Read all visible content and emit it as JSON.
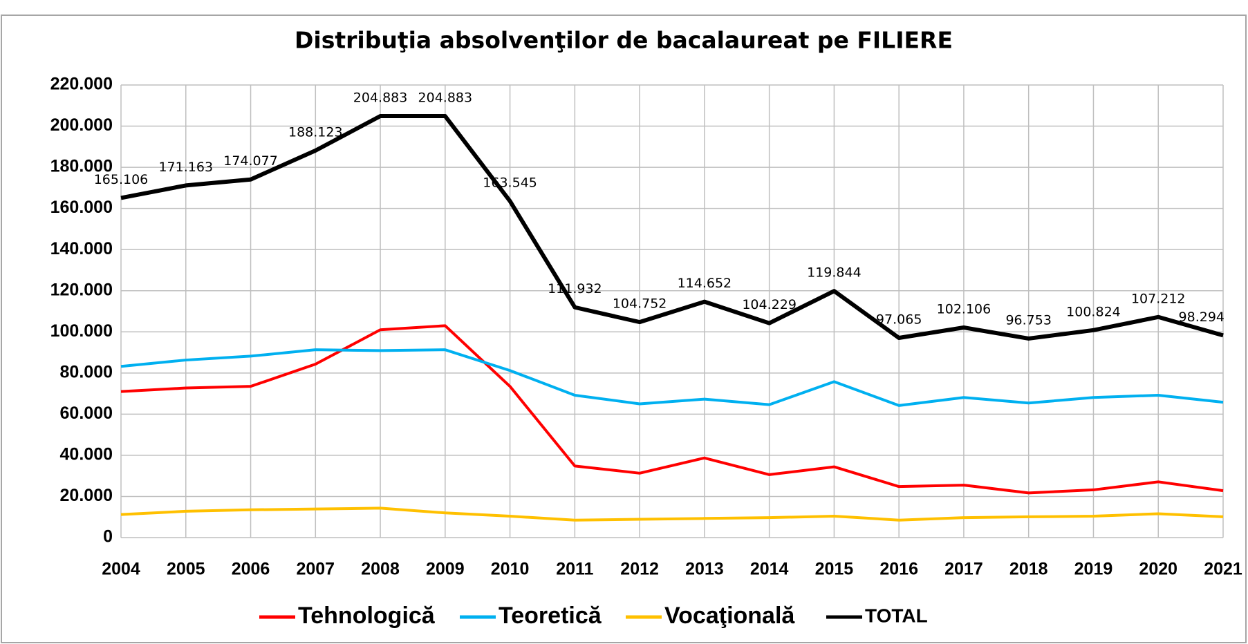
{
  "chart_data": {
    "type": "line",
    "title": "Distribuţia absolvenţilor de bacalaureat pe FILIERE",
    "categories": [
      "2004",
      "2005",
      "2006",
      "2007",
      "2008",
      "2009",
      "2010",
      "2011",
      "2012",
      "2013",
      "2014",
      "2015",
      "2016",
      "2017",
      "2018",
      "2019",
      "2020",
      "2021"
    ],
    "ylim": [
      0,
      220000
    ],
    "yticks": [
      0,
      {
        "value": 20000,
        "label": "20.000"
      },
      {
        "value": 40000,
        "label": "40.000"
      },
      {
        "value": 60000,
        "label": "60.000"
      },
      {
        "value": 80000,
        "label": "80.000"
      },
      {
        "value": 100000,
        "label": "100.000"
      },
      {
        "value": 120000,
        "label": "120.000"
      },
      {
        "value": 140000,
        "label": "140.000"
      },
      {
        "value": 160000,
        "label": "160.000"
      },
      {
        "value": 180000,
        "label": "180.000"
      },
      {
        "value": 200000,
        "label": "200.000"
      },
      {
        "value": 220000,
        "label": "220.000"
      }
    ],
    "grid": true,
    "legend": "bottom",
    "series": [
      {
        "name": "Tehnologică",
        "color": "#ff0000",
        "values": [
          71000,
          72700,
          73500,
          84300,
          101000,
          103000,
          73500,
          34800,
          31300,
          38700,
          30600,
          34400,
          24800,
          25500,
          21700,
          23200,
          27100,
          22800
        ]
      },
      {
        "name": "Teoretică",
        "color": "#00b0f0",
        "values": [
          83200,
          86300,
          88200,
          91300,
          90900,
          91300,
          81200,
          69200,
          65000,
          67300,
          64600,
          75800,
          64200,
          68100,
          65400,
          68100,
          69200,
          65800
        ]
      },
      {
        "name": "Vocaţională",
        "color": "#ffc000",
        "values": [
          11200,
          12800,
          13500,
          13900,
          14300,
          12000,
          10400,
          8500,
          8900,
          9300,
          9700,
          10400,
          8500,
          9700,
          10100,
          10400,
          11600,
          10100
        ]
      },
      {
        "name": "TOTAL",
        "color": "#000000",
        "values": [
          165106,
          171163,
          174077,
          188123,
          204883,
          204883,
          163545,
          111932,
          104752,
          114652,
          104229,
          119844,
          97065,
          102106,
          96753,
          100824,
          107212,
          98294
        ],
        "value_labels": [
          "165.106",
          "171.163",
          "174.077",
          "188.123",
          "204.883",
          "204.883",
          "163.545",
          "111.932",
          "104.752",
          "114.652",
          "104.229",
          "119.844",
          "97.065",
          "102.106",
          "96.753",
          "100.824",
          "107.212",
          "98.294"
        ]
      }
    ]
  }
}
